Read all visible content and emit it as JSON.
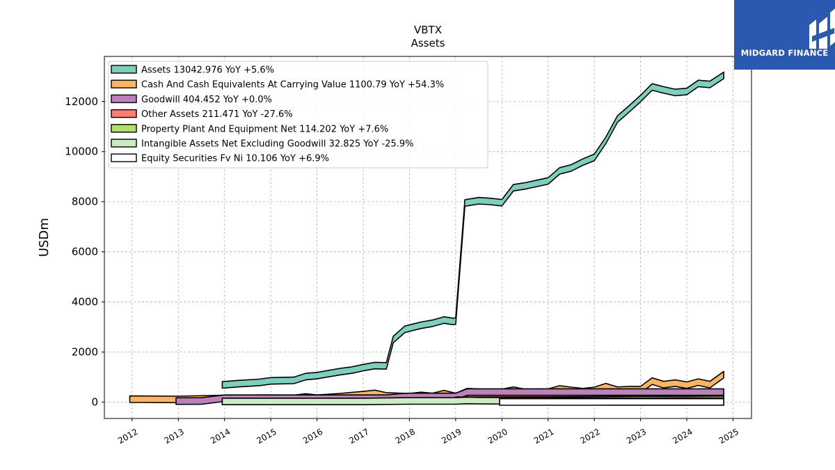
{
  "brand": {
    "name": "MIDGARD FINANCE",
    "color": "#2b59b0"
  },
  "chart_data": {
    "type": "area",
    "title": "VBTX",
    "subtitle": "Assets",
    "xlabel": "",
    "ylabel": "USDm",
    "xlim": [
      2011.4,
      2025.4
    ],
    "ylim": [
      -650,
      13800
    ],
    "x_ticks": [
      "2012",
      "2013",
      "2014",
      "2015",
      "2016",
      "2017",
      "2018",
      "2019",
      "2020",
      "2021",
      "2022",
      "2023",
      "2024",
      "2025"
    ],
    "y_ticks": [
      0,
      2000,
      4000,
      6000,
      8000,
      10000,
      12000
    ],
    "grid": true,
    "legend_position": "top-left",
    "series": [
      {
        "name": "Assets",
        "legend": "Assets  13042.976 YoY +5.6%",
        "color": "#7fcdbb",
        "points": [
          [
            2013.95,
            690
          ],
          [
            2014.3,
            740
          ],
          [
            2014.75,
            790
          ],
          [
            2015.0,
            850
          ],
          [
            2015.5,
            870
          ],
          [
            2015.75,
            1020
          ],
          [
            2016.0,
            1060
          ],
          [
            2016.5,
            1220
          ],
          [
            2016.75,
            1280
          ],
          [
            2017.0,
            1380
          ],
          [
            2017.25,
            1460
          ],
          [
            2017.5,
            1450
          ],
          [
            2017.65,
            2500
          ],
          [
            2017.9,
            2910
          ],
          [
            2018.25,
            3070
          ],
          [
            2018.5,
            3150
          ],
          [
            2018.75,
            3280
          ],
          [
            2018.95,
            3220
          ],
          [
            2019.0,
            3240
          ],
          [
            2019.2,
            7950
          ],
          [
            2019.5,
            8040
          ],
          [
            2019.75,
            8010
          ],
          [
            2020.0,
            7960
          ],
          [
            2020.25,
            8560
          ],
          [
            2020.5,
            8630
          ],
          [
            2020.75,
            8730
          ],
          [
            2021.0,
            8830
          ],
          [
            2021.25,
            9230
          ],
          [
            2021.5,
            9350
          ],
          [
            2021.75,
            9580
          ],
          [
            2022.0,
            9770
          ],
          [
            2022.25,
            10450
          ],
          [
            2022.5,
            11300
          ],
          [
            2022.75,
            11700
          ],
          [
            2023.0,
            12120
          ],
          [
            2023.25,
            12580
          ],
          [
            2023.5,
            12460
          ],
          [
            2023.75,
            12360
          ],
          [
            2024.0,
            12400
          ],
          [
            2024.25,
            12720
          ],
          [
            2024.5,
            12680
          ],
          [
            2024.8,
            13043
          ]
        ]
      },
      {
        "name": "Cash And Cash Equivalents At Carrying Value",
        "legend": "Cash And Cash Equivalents At Carrying Value  1100.79 YoY +54.3%",
        "color": "#fdb462",
        "points": [
          [
            2011.95,
            120
          ],
          [
            2013.0,
            110
          ],
          [
            2014.0,
            150
          ],
          [
            2015.0,
            160
          ],
          [
            2015.5,
            150
          ],
          [
            2015.75,
            210
          ],
          [
            2016.0,
            160
          ],
          [
            2016.5,
            220
          ],
          [
            2017.0,
            300
          ],
          [
            2017.25,
            350
          ],
          [
            2017.5,
            250
          ],
          [
            2018.0,
            220
          ],
          [
            2018.25,
            270
          ],
          [
            2018.5,
            230
          ],
          [
            2018.75,
            340
          ],
          [
            2019.0,
            230
          ],
          [
            2019.25,
            420
          ],
          [
            2019.5,
            400
          ],
          [
            2019.75,
            380
          ],
          [
            2020.0,
            390
          ],
          [
            2020.25,
            480
          ],
          [
            2020.5,
            390
          ],
          [
            2021.0,
            400
          ],
          [
            2021.25,
            530
          ],
          [
            2021.5,
            470
          ],
          [
            2021.75,
            420
          ],
          [
            2022.0,
            470
          ],
          [
            2022.25,
            620
          ],
          [
            2022.5,
            480
          ],
          [
            2022.75,
            500
          ],
          [
            2023.0,
            500
          ],
          [
            2023.25,
            840
          ],
          [
            2023.5,
            700
          ],
          [
            2023.75,
            760
          ],
          [
            2024.0,
            680
          ],
          [
            2024.25,
            800
          ],
          [
            2024.5,
            700
          ],
          [
            2024.8,
            1101
          ]
        ]
      },
      {
        "name": "Goodwill",
        "legend": "Goodwill  404.452 YoY +0.0%",
        "color": "#bc80bd",
        "points": [
          [
            2012.95,
            45
          ],
          [
            2013.5,
            48
          ],
          [
            2014.0,
            160
          ],
          [
            2017.5,
            160
          ],
          [
            2017.75,
            200
          ],
          [
            2018.0,
            230
          ],
          [
            2019.0,
            230
          ],
          [
            2019.25,
            404
          ],
          [
            2024.8,
            404
          ]
        ]
      },
      {
        "name": "Other Assets",
        "legend": "Other Assets  211.471 YoY -27.6%",
        "color": "#fb8072",
        "points": [
          [
            2019.25,
            150
          ],
          [
            2020.0,
            160
          ],
          [
            2021.0,
            170
          ],
          [
            2021.75,
            180
          ],
          [
            2022.0,
            190
          ],
          [
            2022.5,
            230
          ],
          [
            2023.0,
            280
          ],
          [
            2023.5,
            300
          ],
          [
            2023.75,
            320
          ],
          [
            2024.0,
            290
          ],
          [
            2024.5,
            280
          ],
          [
            2024.8,
            211
          ]
        ]
      },
      {
        "name": "Property Plant And Equipment Net",
        "legend": "Property Plant And Equipment Net  114.202 YoY +7.6%",
        "color": "#b3de69",
        "points": [
          [
            2019.0,
            75
          ],
          [
            2020.0,
            80
          ],
          [
            2021.0,
            85
          ],
          [
            2022.0,
            95
          ],
          [
            2023.0,
            105
          ],
          [
            2024.0,
            106
          ],
          [
            2024.8,
            114
          ]
        ]
      },
      {
        "name": "Intangible Assets Net Excluding Goodwill",
        "legend": "Intangible Assets Net Excluding Goodwill  32.825 YoY -25.9%",
        "color": "#ccebc5",
        "points": [
          [
            2013.95,
            30
          ],
          [
            2016.0,
            30
          ],
          [
            2017.0,
            30
          ],
          [
            2018.0,
            50
          ],
          [
            2019.0,
            50
          ],
          [
            2019.25,
            70
          ],
          [
            2019.5,
            60
          ],
          [
            2020.0,
            55
          ],
          [
            2021.0,
            50
          ],
          [
            2022.0,
            45
          ],
          [
            2023.0,
            40
          ],
          [
            2024.0,
            44
          ],
          [
            2024.8,
            33
          ]
        ]
      },
      {
        "name": "Equity Securities Fv Ni",
        "legend": "Equity Securities Fv Ni  10.106 YoY +6.9%",
        "color": "#ffffff",
        "points": [
          [
            2019.95,
            9
          ],
          [
            2021.0,
            9
          ],
          [
            2022.0,
            9
          ],
          [
            2023.0,
            9.5
          ],
          [
            2024.0,
            9.5
          ],
          [
            2024.8,
            10.1
          ]
        ]
      }
    ]
  }
}
